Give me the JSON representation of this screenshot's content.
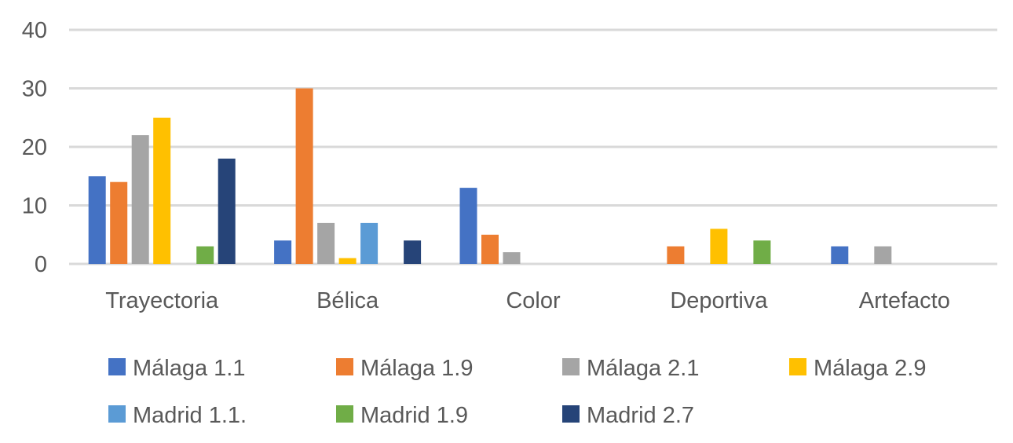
{
  "chart_data": {
    "type": "bar",
    "title": "",
    "xlabel": "",
    "ylabel": "",
    "ylim": [
      0,
      40
    ],
    "yticks": [
      0,
      10,
      20,
      30,
      40
    ],
    "grid": true,
    "legend_position": "bottom",
    "categories": [
      "Trayectoria",
      "Bélica",
      "Color",
      "Deportiva",
      "Artefacto"
    ],
    "series": [
      {
        "name": "Málaga 1.1",
        "color": "#4472C4",
        "values": [
          15,
          4,
          13,
          0,
          3
        ]
      },
      {
        "name": "Málaga 1.9",
        "color": "#ED7D31",
        "values": [
          14,
          30,
          5,
          3,
          0
        ]
      },
      {
        "name": "Málaga 2.1",
        "color": "#A5A5A5",
        "values": [
          22,
          7,
          2,
          0,
          3
        ]
      },
      {
        "name": "Málaga 2.9",
        "color": "#FFC000",
        "values": [
          25,
          1,
          0,
          6,
          0
        ]
      },
      {
        "name": "Madrid 1.1.",
        "color": "#5B9BD5",
        "values": [
          0,
          7,
          0,
          0,
          0
        ]
      },
      {
        "name": "Madrid 1.9",
        "color": "#70AD47",
        "values": [
          3,
          0,
          0,
          4,
          0
        ]
      },
      {
        "name": "Madrid 2.7",
        "color": "#264478",
        "values": [
          18,
          4,
          0,
          0,
          0
        ]
      }
    ]
  }
}
